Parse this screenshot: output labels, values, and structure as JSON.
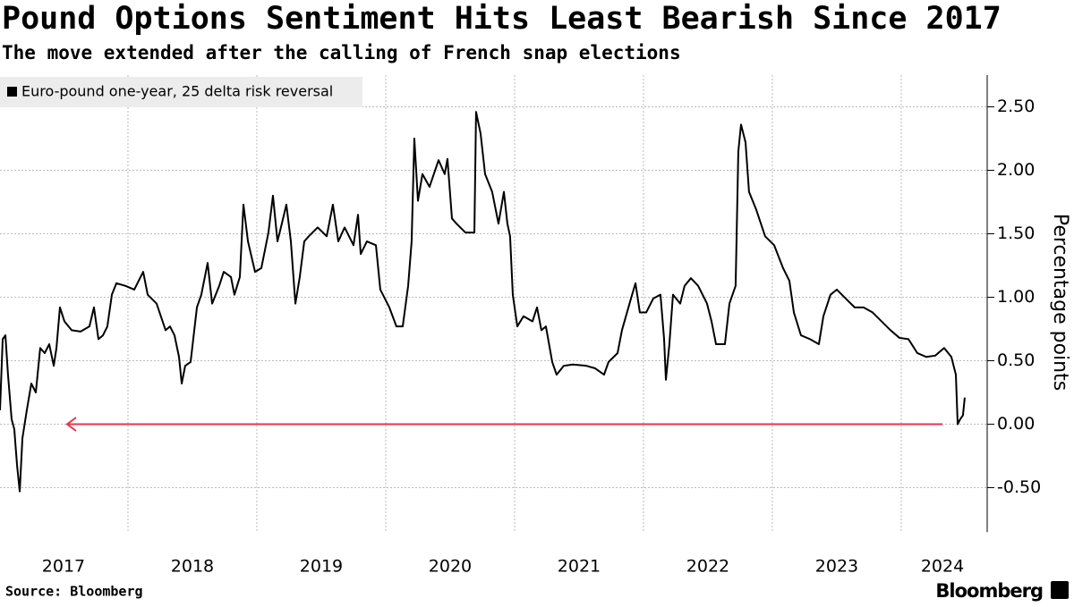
{
  "chart_data": {
    "type": "line",
    "title": "Pound Options Sentiment Hits Least Bearish Since 2017",
    "subtitle": "The move extended after the calling of French snap elections",
    "y_axis_label": "Percentage points",
    "source": "Source: Bloomberg",
    "brand": "Bloomberg",
    "xlim": [
      2017.007,
      2024.667
    ],
    "xticks": [
      {
        "value": 2017.5,
        "label": "2017"
      },
      {
        "value": 2018.5,
        "label": "2018"
      },
      {
        "value": 2019.5,
        "label": "2019"
      },
      {
        "value": 2020.5,
        "label": "2020"
      },
      {
        "value": 2021.5,
        "label": "2021"
      },
      {
        "value": 2022.5,
        "label": "2022"
      },
      {
        "value": 2023.5,
        "label": "2023"
      },
      {
        "value": 2024.32,
        "label": "2024"
      }
    ],
    "xgrid": [
      2018,
      2019,
      2020,
      2021,
      2022,
      2023,
      2024
    ],
    "ylim": [
      -0.85,
      2.75
    ],
    "yticks": [
      {
        "value": 2.5,
        "label": "2.50"
      },
      {
        "value": 2,
        "label": "2.00"
      },
      {
        "value": 1.5,
        "label": "1.50"
      },
      {
        "value": 1,
        "label": "1.00"
      },
      {
        "value": 0.5,
        "label": "0.50"
      },
      {
        "value": 0,
        "label": "0.00"
      },
      {
        "value": -0.5,
        "label": "-0.50"
      }
    ],
    "grid": true,
    "legend": "top-left",
    "x": [
      2017.007,
      2017.028,
      2017.049,
      2017.069,
      2017.097,
      2017.118,
      2017.139,
      2017.16,
      2017.181,
      2017.215,
      2017.25,
      2017.285,
      2017.319,
      2017.354,
      2017.389,
      2017.424,
      2017.445,
      2017.472,
      2017.507,
      2017.563,
      2017.632,
      2017.701,
      2017.736,
      2017.771,
      2017.806,
      2017.84,
      2017.875,
      2017.91,
      2017.979,
      2018.049,
      2018.118,
      2018.153,
      2018.222,
      2018.292,
      2018.326,
      2018.361,
      2018.396,
      2018.417,
      2018.444,
      2018.486,
      2018.535,
      2018.569,
      2018.618,
      2018.653,
      2018.708,
      2018.743,
      2018.799,
      2018.826,
      2018.868,
      2018.896,
      2018.931,
      2018.986,
      2019.035,
      2019.09,
      2019.125,
      2019.16,
      2019.194,
      2019.229,
      2019.264,
      2019.299,
      2019.333,
      2019.368,
      2019.403,
      2019.472,
      2019.542,
      2019.59,
      2019.632,
      2019.681,
      2019.75,
      2019.785,
      2019.806,
      2019.854,
      2019.924,
      2019.958,
      2020.028,
      2020.083,
      2020.132,
      2020.174,
      2020.201,
      2020.222,
      2020.25,
      2020.285,
      2020.34,
      2020.41,
      2020.458,
      2020.479,
      2020.514,
      2020.549,
      2020.618,
      2020.688,
      2020.701,
      2020.736,
      2020.771,
      2020.826,
      2020.875,
      2020.917,
      2020.944,
      2020.965,
      2020.986,
      2021.021,
      2021.069,
      2021.139,
      2021.174,
      2021.208,
      2021.243,
      2021.292,
      2021.326,
      2021.382,
      2021.451,
      2021.556,
      2021.625,
      2021.694,
      2021.729,
      2021.799,
      2021.833,
      2021.903,
      2021.938,
      2021.972,
      2022.021,
      2022.076,
      2022.132,
      2022.16,
      2022.174,
      2022.201,
      2022.229,
      2022.285,
      2022.319,
      2022.368,
      2022.424,
      2022.493,
      2022.528,
      2022.563,
      2022.632,
      2022.667,
      2022.715,
      2022.736,
      2022.757,
      2022.792,
      2022.819,
      2022.875,
      2022.944,
      2023.014,
      2023.083,
      2023.132,
      2023.167,
      2023.222,
      2023.292,
      2023.361,
      2023.396,
      2023.451,
      2023.5,
      2023.569,
      2023.639,
      2023.708,
      2023.778,
      2023.847,
      2023.917,
      2023.986,
      2024.056,
      2024.125,
      2024.194,
      2024.264,
      2024.333,
      2024.389,
      2024.424,
      2024.438,
      2024.458,
      2024.479,
      2024.493
    ],
    "series": [
      {
        "name": "Euro-pound one-year, 25 delta risk reversal",
        "color": "#000000",
        "values": [
          0.11,
          0.67,
          0.7,
          0.39,
          0.04,
          -0.04,
          -0.32,
          -0.53,
          -0.11,
          0.11,
          0.32,
          0.25,
          0.6,
          0.56,
          0.63,
          0.46,
          0.6,
          0.92,
          0.81,
          0.74,
          0.73,
          0.77,
          0.92,
          0.67,
          0.7,
          0.77,
          1.02,
          1.11,
          1.09,
          1.06,
          1.2,
          1.02,
          0.95,
          0.74,
          0.77,
          0.7,
          0.53,
          0.32,
          0.46,
          0.49,
          0.92,
          1.02,
          1.27,
          0.95,
          1.09,
          1.2,
          1.16,
          1.02,
          1.16,
          1.73,
          1.44,
          1.2,
          1.23,
          1.51,
          1.8,
          1.44,
          1.58,
          1.73,
          1.44,
          0.95,
          1.16,
          1.44,
          1.48,
          1.55,
          1.48,
          1.73,
          1.44,
          1.55,
          1.41,
          1.65,
          1.34,
          1.44,
          1.41,
          1.06,
          0.92,
          0.77,
          0.77,
          1.09,
          1.44,
          2.25,
          1.76,
          1.97,
          1.87,
          2.08,
          1.97,
          2.09,
          1.62,
          1.58,
          1.51,
          1.51,
          2.46,
          2.29,
          1.97,
          1.83,
          1.58,
          1.83,
          1.58,
          1.48,
          1.02,
          0.77,
          0.85,
          0.81,
          0.92,
          0.74,
          0.77,
          0.49,
          0.39,
          0.46,
          0.47,
          0.46,
          0.44,
          0.39,
          0.49,
          0.56,
          0.74,
          0.99,
          1.11,
          0.88,
          0.88,
          0.99,
          1.02,
          0.67,
          0.35,
          0.63,
          1.02,
          0.95,
          1.09,
          1.15,
          1.09,
          0.95,
          0.81,
          0.63,
          0.63,
          0.95,
          1.09,
          2.15,
          2.36,
          2.22,
          1.83,
          1.69,
          1.48,
          1.41,
          1.23,
          1.13,
          0.88,
          0.7,
          0.67,
          0.63,
          0.85,
          1.02,
          1.06,
          0.99,
          0.92,
          0.92,
          0.88,
          0.81,
          0.74,
          0.68,
          0.67,
          0.56,
          0.53,
          0.54,
          0.6,
          0.53,
          0.39,
          0.0,
          0.04,
          0.07,
          0.21
        ]
      }
    ]
  }
}
